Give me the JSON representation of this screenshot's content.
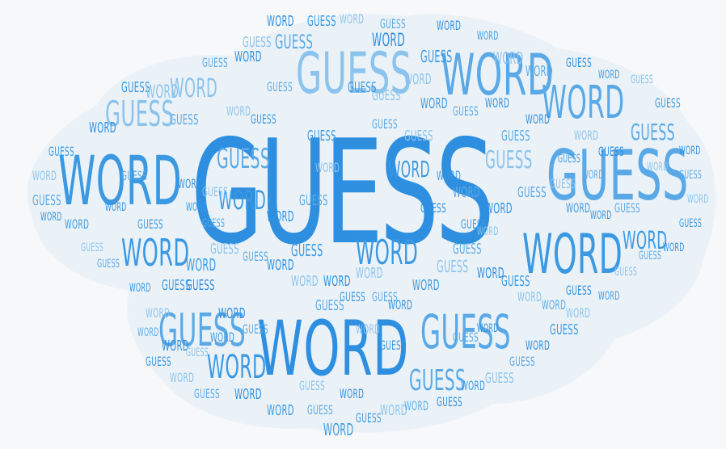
{
  "colors": {
    "background": "#f6f8fa",
    "cloud_fill": "#eaf2f8",
    "palette": [
      "#2e8fe0",
      "#5aa9e6",
      "#8cc3ec",
      "#3b99e2"
    ]
  },
  "hero": {
    "guess": "GUESS",
    "word_large": "WORD",
    "word_right": "WORD",
    "guess_right": "GUESS",
    "guess_mid": "GUESS",
    "word_left": "WORD"
  },
  "words": [
    "WORD",
    "GUESS"
  ],
  "filler_pattern": [
    "WORD",
    "GUESS",
    "WORD",
    "GUESS",
    "WORD",
    "WORD",
    "GUESS",
    "GUESS",
    "WORD",
    "GUESS",
    "WORD",
    "WORD",
    "GUESS",
    "WORD",
    "GUESS",
    "GUESS",
    "WORD",
    "GUESS",
    "WORD",
    "GUESS"
  ]
}
